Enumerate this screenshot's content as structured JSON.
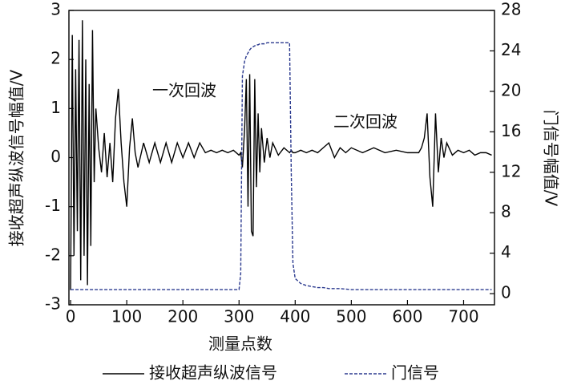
{
  "chart_data": {
    "type": "line",
    "x_label": "测量点数",
    "y_label": "接收超声纵波信号幅值/V",
    "y2_label": "门信号幅值/V",
    "annotations": [
      "一次回波",
      "二次回波"
    ],
    "xlim": [
      -3,
      755
    ],
    "xticks": [
      0,
      100,
      200,
      300,
      400,
      500,
      600,
      700
    ],
    "ylim": [
      -3,
      3
    ],
    "yticks": [
      -3,
      -2,
      -1,
      0,
      1,
      2,
      3
    ],
    "y2lim": [
      -1.1,
      28
    ],
    "y2ticks": [
      0,
      4,
      8,
      12,
      16,
      20,
      24,
      28
    ],
    "legend": "bottom",
    "x": [
      0,
      3,
      6,
      9,
      12,
      15,
      18,
      21,
      24,
      27,
      30,
      33,
      36,
      39,
      42,
      45,
      50,
      55,
      60,
      65,
      70,
      75,
      80,
      85,
      90,
      95,
      100,
      105,
      110,
      115,
      120,
      130,
      140,
      150,
      160,
      170,
      180,
      190,
      200,
      210,
      220,
      230,
      240,
      250,
      260,
      270,
      280,
      290,
      300,
      303,
      306,
      310,
      313,
      316,
      319,
      322,
      325,
      328,
      331,
      334,
      337,
      340,
      345,
      350,
      355,
      360,
      370,
      380,
      390,
      393,
      396,
      400,
      410,
      420,
      430,
      440,
      450,
      460,
      470,
      480,
      490,
      500,
      520,
      540,
      560,
      580,
      600,
      620,
      625,
      630,
      635,
      640,
      645,
      650,
      655,
      660,
      665,
      670,
      680,
      690,
      700,
      710,
      720,
      730,
      740,
      750
    ],
    "series": [
      {
        "name": "接收超声纵波信号",
        "color": "#000000",
        "style": "solid",
        "values": [
          -2.7,
          2.5,
          -2.0,
          1.8,
          -1.5,
          2.4,
          -2.5,
          2.8,
          -2.0,
          2.0,
          -2.6,
          1.5,
          -1.8,
          2.6,
          -0.5,
          1.0,
          0.2,
          -0.3,
          0.5,
          -0.4,
          0.3,
          -0.5,
          0.8,
          1.4,
          0.3,
          -0.5,
          -1.0,
          0.2,
          0.8,
          0.1,
          -0.2,
          0.3,
          -0.1,
          0.3,
          -0.1,
          0.3,
          -0.1,
          0.3,
          0.0,
          0.3,
          0.0,
          0.3,
          0.1,
          0.15,
          0.1,
          0.15,
          0.1,
          0.15,
          0.05,
          0.1,
          -0.2,
          0.6,
          1.6,
          -1.0,
          1.7,
          -1.5,
          -1.6,
          1.6,
          -0.6,
          0.9,
          -0.3,
          0.6,
          -0.1,
          0.4,
          0.0,
          0.3,
          0.05,
          0.2,
          0.1,
          0.15,
          0.1,
          0.1,
          0.15,
          0.1,
          0.15,
          0.1,
          0.2,
          0.3,
          0.0,
          0.2,
          0.1,
          0.2,
          0.1,
          0.2,
          0.1,
          0.15,
          0.1,
          0.1,
          0.2,
          0.4,
          0.9,
          -0.4,
          -1.0,
          0.9,
          -0.3,
          0.4,
          0.0,
          0.3,
          0.05,
          0.15,
          0.1,
          0.15,
          0.05,
          0.1,
          0.1,
          0.05
        ]
      },
      {
        "name": "门信号",
        "color": "#2b3a8f",
        "style": "dashed",
        "axis": "y2",
        "values": [
          0.4,
          0.4,
          0.4,
          0.4,
          0.4,
          0.4,
          0.4,
          0.4,
          0.4,
          0.4,
          0.4,
          0.4,
          0.4,
          0.4,
          0.4,
          0.4,
          0.4,
          0.4,
          0.4,
          0.4,
          0.4,
          0.4,
          0.4,
          0.4,
          0.4,
          0.4,
          0.4,
          0.4,
          0.4,
          0.4,
          0.4,
          0.4,
          0.4,
          0.4,
          0.4,
          0.4,
          0.4,
          0.4,
          0.4,
          0.4,
          0.4,
          0.4,
          0.4,
          0.4,
          0.4,
          0.4,
          0.4,
          0.4,
          0.4,
          2,
          21.5,
          23,
          23.5,
          23.8,
          24.1,
          24.3,
          24.4,
          24.5,
          24.6,
          24.6,
          24.7,
          24.7,
          24.7,
          24.8,
          24.8,
          24.8,
          24.8,
          24.8,
          24.8,
          12,
          3,
          1.5,
          1.0,
          0.8,
          0.7,
          0.6,
          0.6,
          0.5,
          0.5,
          0.5,
          0.45,
          0.4,
          0.4,
          0.4,
          0.4,
          0.4,
          0.4,
          0.4,
          0.4,
          0.4,
          0.4,
          0.4,
          0.4,
          0.4,
          0.4,
          0.4,
          0.4,
          0.4,
          0.4,
          0.4,
          0.4,
          0.4,
          0.4,
          0.4,
          0.4,
          0.4
        ]
      }
    ]
  }
}
